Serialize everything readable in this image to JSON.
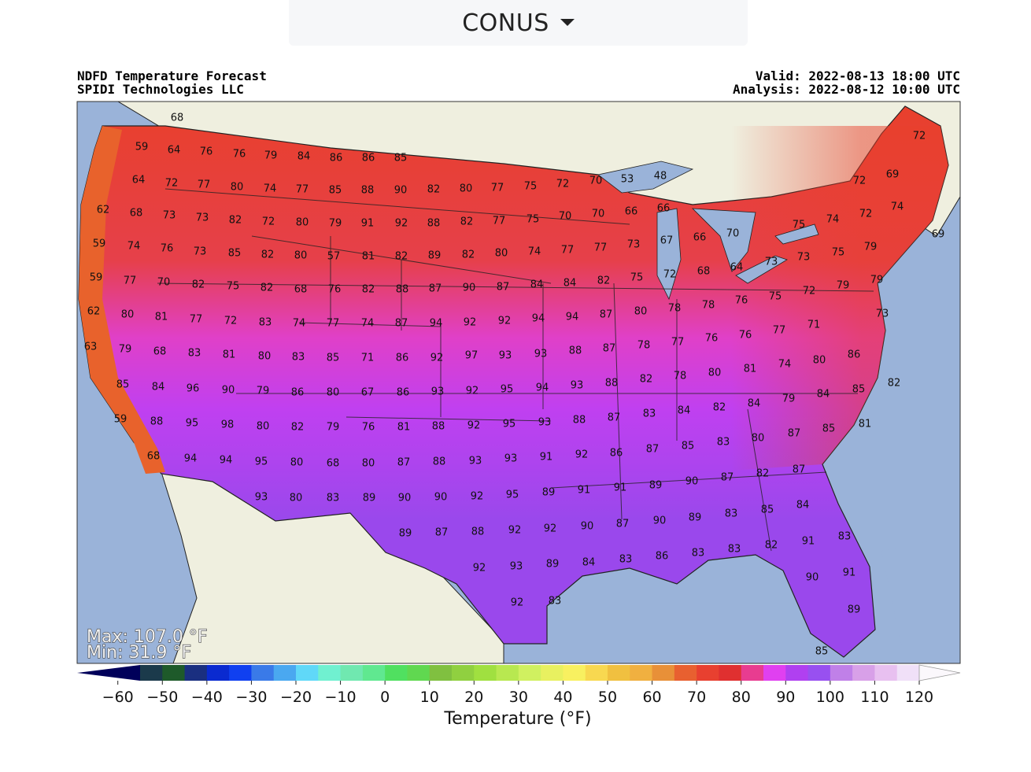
{
  "selector": {
    "label": "CONUS"
  },
  "map": {
    "title": "NDFD Temperature Forecast",
    "source": "SPIDI Technologies LLC",
    "valid": "Valid: 2022-08-13 18:00 UTC",
    "analysis": "Analysis: 2022-08-12 10:00 UTC",
    "max": "Max: 107.0 °F",
    "min": "Min: 31.9 °F",
    "stations": [
      68,
      59,
      64,
      76,
      76,
      79,
      84,
      86,
      86,
      85,
      64,
      72,
      77,
      80,
      74,
      77,
      85,
      88,
      90,
      82,
      80,
      77,
      75,
      72,
      70,
      53,
      48,
      72,
      69,
      72,
      62,
      68,
      73,
      73,
      82,
      72,
      80,
      79,
      91,
      92,
      88,
      82,
      77,
      75,
      70,
      70,
      66,
      66,
      74,
      72,
      74,
      59,
      74,
      76,
      73,
      85,
      82,
      80,
      57,
      81,
      82,
      89,
      82,
      80,
      74,
      77,
      77,
      73,
      67,
      66,
      70,
      75,
      75,
      79,
      69,
      59,
      77,
      70,
      82,
      75,
      82,
      68,
      76,
      82,
      88,
      87,
      90,
      87,
      84,
      84,
      82,
      75,
      72,
      68,
      64,
      73,
      73,
      79,
      62,
      80,
      81,
      77,
      72,
      83,
      74,
      77,
      74,
      87,
      94,
      92,
      92,
      94,
      94,
      87,
      80,
      78,
      78,
      76,
      75,
      72,
      79,
      73,
      63,
      79,
      68,
      83,
      81,
      80,
      83,
      85,
      71,
      86,
      92,
      97,
      93,
      93,
      88,
      87,
      78,
      77,
      76,
      76,
      77,
      71,
      85,
      84,
      96,
      90,
      79,
      86,
      80,
      67,
      86,
      93,
      92,
      95,
      94,
      93,
      88,
      82,
      78,
      80,
      81,
      74,
      80,
      86,
      59,
      88,
      95,
      98,
      80,
      82,
      79,
      76,
      81,
      88,
      92,
      95,
      93,
      88,
      87,
      83,
      84,
      82,
      84,
      79,
      84,
      85,
      82,
      68,
      94,
      94,
      95,
      80,
      68,
      80,
      87,
      88,
      93,
      93,
      91,
      92,
      86,
      87,
      85,
      83,
      80,
      87,
      85,
      81,
      93,
      80,
      83,
      89,
      90,
      90,
      92,
      95,
      89,
      91,
      91,
      89,
      90,
      87,
      82,
      87,
      89,
      87,
      88,
      92,
      92,
      90,
      87,
      90,
      89,
      83,
      85,
      84,
      92,
      93,
      89,
      84,
      83,
      86,
      83,
      83,
      82,
      91,
      83,
      92,
      83,
      90,
      91,
      89,
      85
    ]
  },
  "colorbar": {
    "label": "Temperature (°F)",
    "xlim": [
      -55,
      120
    ],
    "bounds": [
      -55,
      -50,
      -45,
      -40,
      -35,
      -30,
      -25,
      -20,
      -15,
      -10,
      -5,
      0,
      5,
      10,
      15,
      20,
      25,
      30,
      35,
      40,
      45,
      50,
      55,
      60,
      65,
      70,
      75,
      80,
      85,
      90,
      95,
      100,
      105,
      110,
      115,
      120
    ],
    "colors": [
      "#1b3a4b",
      "#1e5a2a",
      "#1a2f80",
      "#0a2ad0",
      "#1040f0",
      "#3a7ae8",
      "#4aa8f0",
      "#60d8f8",
      "#70f0d0",
      "#70e8b0",
      "#60e890",
      "#50e060",
      "#60d850",
      "#80c040",
      "#90d040",
      "#a0e040",
      "#b8e850",
      "#d0f060",
      "#e8f060",
      "#f8f060",
      "#f8d850",
      "#f0c040",
      "#f0b040",
      "#e89038",
      "#e86030",
      "#e84030",
      "#e03030",
      "#e83c90",
      "#e040f0",
      "#b040f0",
      "#9850f0",
      "#c080e8",
      "#d8a0e8",
      "#e8c0f0",
      "#f0e0f8"
    ],
    "extend_colors": [
      "#00005a",
      "#fbf8fc"
    ],
    "xticks": [
      {
        "value": -60,
        "label": "−60"
      },
      {
        "value": -50,
        "label": "−50"
      },
      {
        "value": -40,
        "label": "−40"
      },
      {
        "value": -30,
        "label": "−30"
      },
      {
        "value": -20,
        "label": "−20"
      },
      {
        "value": -10,
        "label": "−10"
      },
      0,
      10,
      20,
      30,
      40,
      50,
      60,
      70,
      80,
      90,
      100,
      110,
      120
    ]
  }
}
